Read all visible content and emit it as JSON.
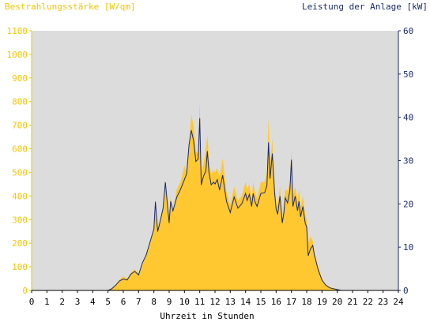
{
  "chart_data": {
    "type": "area",
    "title_left": "Bestrahlungsstärke [W/qm]",
    "title_right": "Leistung der Anlage [kW]",
    "xlabel": "Uhrzeit in Stunden",
    "xlim": [
      0,
      24
    ],
    "x_ticks": [
      "0",
      "1",
      "2",
      "3",
      "4",
      "5",
      "6",
      "7",
      "8",
      "9",
      "10",
      "11",
      "12",
      "13",
      "14",
      "15",
      "16",
      "17",
      "18",
      "19",
      "20",
      "21",
      "22",
      "23",
      "24"
    ],
    "y_left": {
      "lim": [
        0,
        1100
      ],
      "ticks": [
        "0",
        "100",
        "200",
        "300",
        "400",
        "500",
        "600",
        "700",
        "800",
        "900",
        "1000",
        "1100"
      ]
    },
    "y_right": {
      "lim": [
        0,
        60
      ],
      "ticks": [
        "0",
        "10",
        "20",
        "30",
        "40",
        "50",
        "60"
      ]
    },
    "grid": false,
    "colors": {
      "plot_bg": "#dcdcdc",
      "irradiance": "#ffc830",
      "power": "#1a2a6c",
      "left_axis": "#f5c400",
      "right_axis": "#1a2a6c"
    },
    "series": [
      {
        "name": "Bestrahlungsstärke [W/qm]",
        "axis": "left",
        "style": "filled-area",
        "x": [
          0,
          5,
          5.25,
          5.5,
          5.75,
          6,
          6.25,
          6.5,
          6.75,
          7,
          7.25,
          7.5,
          7.75,
          8,
          8.1,
          8.25,
          8.4,
          8.6,
          8.75,
          9,
          9.1,
          9.25,
          9.5,
          9.75,
          10,
          10.15,
          10.3,
          10.45,
          10.6,
          10.75,
          10.9,
          11,
          11.1,
          11.25,
          11.4,
          11.5,
          11.6,
          11.75,
          11.9,
          12,
          12.15,
          12.3,
          12.5,
          12.75,
          13,
          13.25,
          13.5,
          13.75,
          14,
          14.1,
          14.25,
          14.4,
          14.5,
          14.6,
          14.75,
          15,
          15.25,
          15.4,
          15.5,
          15.6,
          15.75,
          15.9,
          16,
          16.1,
          16.25,
          16.4,
          16.5,
          16.6,
          16.75,
          16.9,
          17,
          17.1,
          17.25,
          17.4,
          17.5,
          17.6,
          17.75,
          17.9,
          18,
          18.1,
          18.25,
          18.4,
          18.5,
          18.75,
          19,
          19.25,
          19.5,
          19.75,
          20,
          20.25,
          20.5,
          24
        ],
        "values": [
          0,
          0,
          10,
          25,
          45,
          60,
          50,
          75,
          90,
          70,
          110,
          160,
          200,
          270,
          390,
          260,
          300,
          350,
          440,
          310,
          390,
          340,
          430,
          460,
          530,
          500,
          620,
          745,
          700,
          590,
          580,
          800,
          500,
          540,
          600,
          660,
          560,
          490,
          510,
          500,
          520,
          480,
          560,
          420,
          360,
          440,
          380,
          400,
          460,
          430,
          450,
          390,
          460,
          420,
          390,
          460,
          460,
          500,
          730,
          540,
          640,
          450,
          380,
          360,
          440,
          300,
          360,
          430,
          420,
          460,
          600,
          400,
          440,
          380,
          430,
          350,
          400,
          320,
          300,
          200,
          230,
          210,
          160,
          100,
          50,
          25,
          15,
          10,
          5,
          0,
          0,
          0
        ]
      },
      {
        "name": "Leistung der Anlage [kW]",
        "axis": "right",
        "style": "line",
        "x": [
          0,
          5,
          5.25,
          5.5,
          5.75,
          6,
          6.25,
          6.5,
          6.75,
          7,
          7.25,
          7.5,
          7.75,
          8,
          8.1,
          8.25,
          8.4,
          8.6,
          8.75,
          9,
          9.1,
          9.25,
          9.5,
          9.75,
          10,
          10.15,
          10.3,
          10.45,
          10.6,
          10.75,
          10.9,
          11,
          11.1,
          11.25,
          11.4,
          11.5,
          11.6,
          11.75,
          11.9,
          12,
          12.15,
          12.3,
          12.5,
          12.75,
          13,
          13.25,
          13.5,
          13.75,
          14,
          14.1,
          14.25,
          14.4,
          14.5,
          14.6,
          14.75,
          15,
          15.25,
          15.4,
          15.5,
          15.6,
          15.75,
          15.9,
          16,
          16.1,
          16.25,
          16.4,
          16.5,
          16.6,
          16.75,
          16.9,
          17,
          17.1,
          17.25,
          17.4,
          17.5,
          17.6,
          17.75,
          17.9,
          18,
          18.1,
          18.25,
          18.4,
          18.5,
          18.75,
          19,
          19.25,
          19.5,
          19.75,
          20,
          20.25,
          20.5,
          24
        ],
        "values": [
          0,
          0,
          0.4,
          1.2,
          2.2,
          2.6,
          2.4,
          3.8,
          4.4,
          3.6,
          6.4,
          8.2,
          11.2,
          14.2,
          20.5,
          13.6,
          15.8,
          19,
          25,
          15.6,
          20.6,
          18.4,
          21.6,
          23.4,
          25.6,
          27,
          33.6,
          37,
          34.6,
          29.8,
          30.4,
          39.8,
          24.4,
          26.4,
          27.6,
          32.2,
          27.4,
          24.4,
          25,
          24.6,
          25.6,
          23.2,
          26.6,
          20.6,
          18,
          21.6,
          19,
          20,
          22.4,
          20.8,
          22.2,
          19.4,
          22.4,
          20.6,
          19.4,
          22.4,
          22.6,
          24.2,
          34.2,
          25.8,
          31.6,
          22.6,
          18.8,
          17.6,
          21.8,
          15.6,
          17.8,
          21.4,
          20.2,
          23,
          30.2,
          19.4,
          21.8,
          18.4,
          20.6,
          17,
          19.4,
          15.6,
          14.6,
          8,
          9.6,
          10.4,
          8.2,
          4.8,
          2.4,
          1.2,
          0.6,
          0.4,
          0.2,
          0,
          0,
          0
        ]
      }
    ]
  }
}
